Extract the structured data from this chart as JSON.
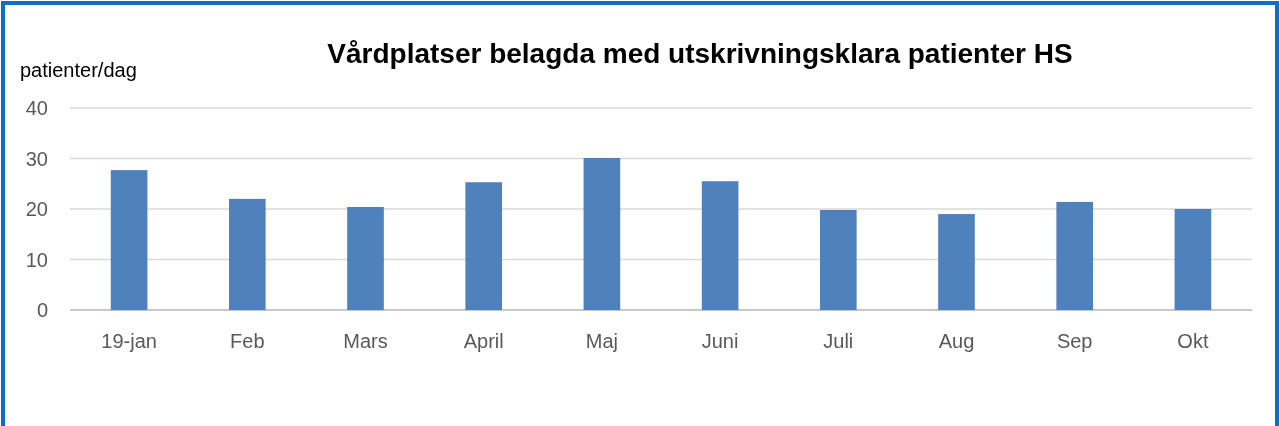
{
  "chart_data": {
    "type": "bar",
    "title": "Vårdplatser belagda med utskrivningsklara patienter HS",
    "ylabel": "patienter/dag",
    "categories": [
      "19-jan",
      "Feb",
      "Mars",
      "April",
      "Maj",
      "Juni",
      "Juli",
      "Aug",
      "Sep",
      "Okt"
    ],
    "values": [
      27.7,
      22.0,
      20.4,
      25.3,
      30.1,
      25.5,
      19.8,
      19.0,
      21.4,
      20.0
    ],
    "color": "#4f81bd",
    "ylim": [
      0,
      40
    ],
    "yticks": [
      0,
      10,
      20,
      30,
      40
    ],
    "grid": "y"
  }
}
